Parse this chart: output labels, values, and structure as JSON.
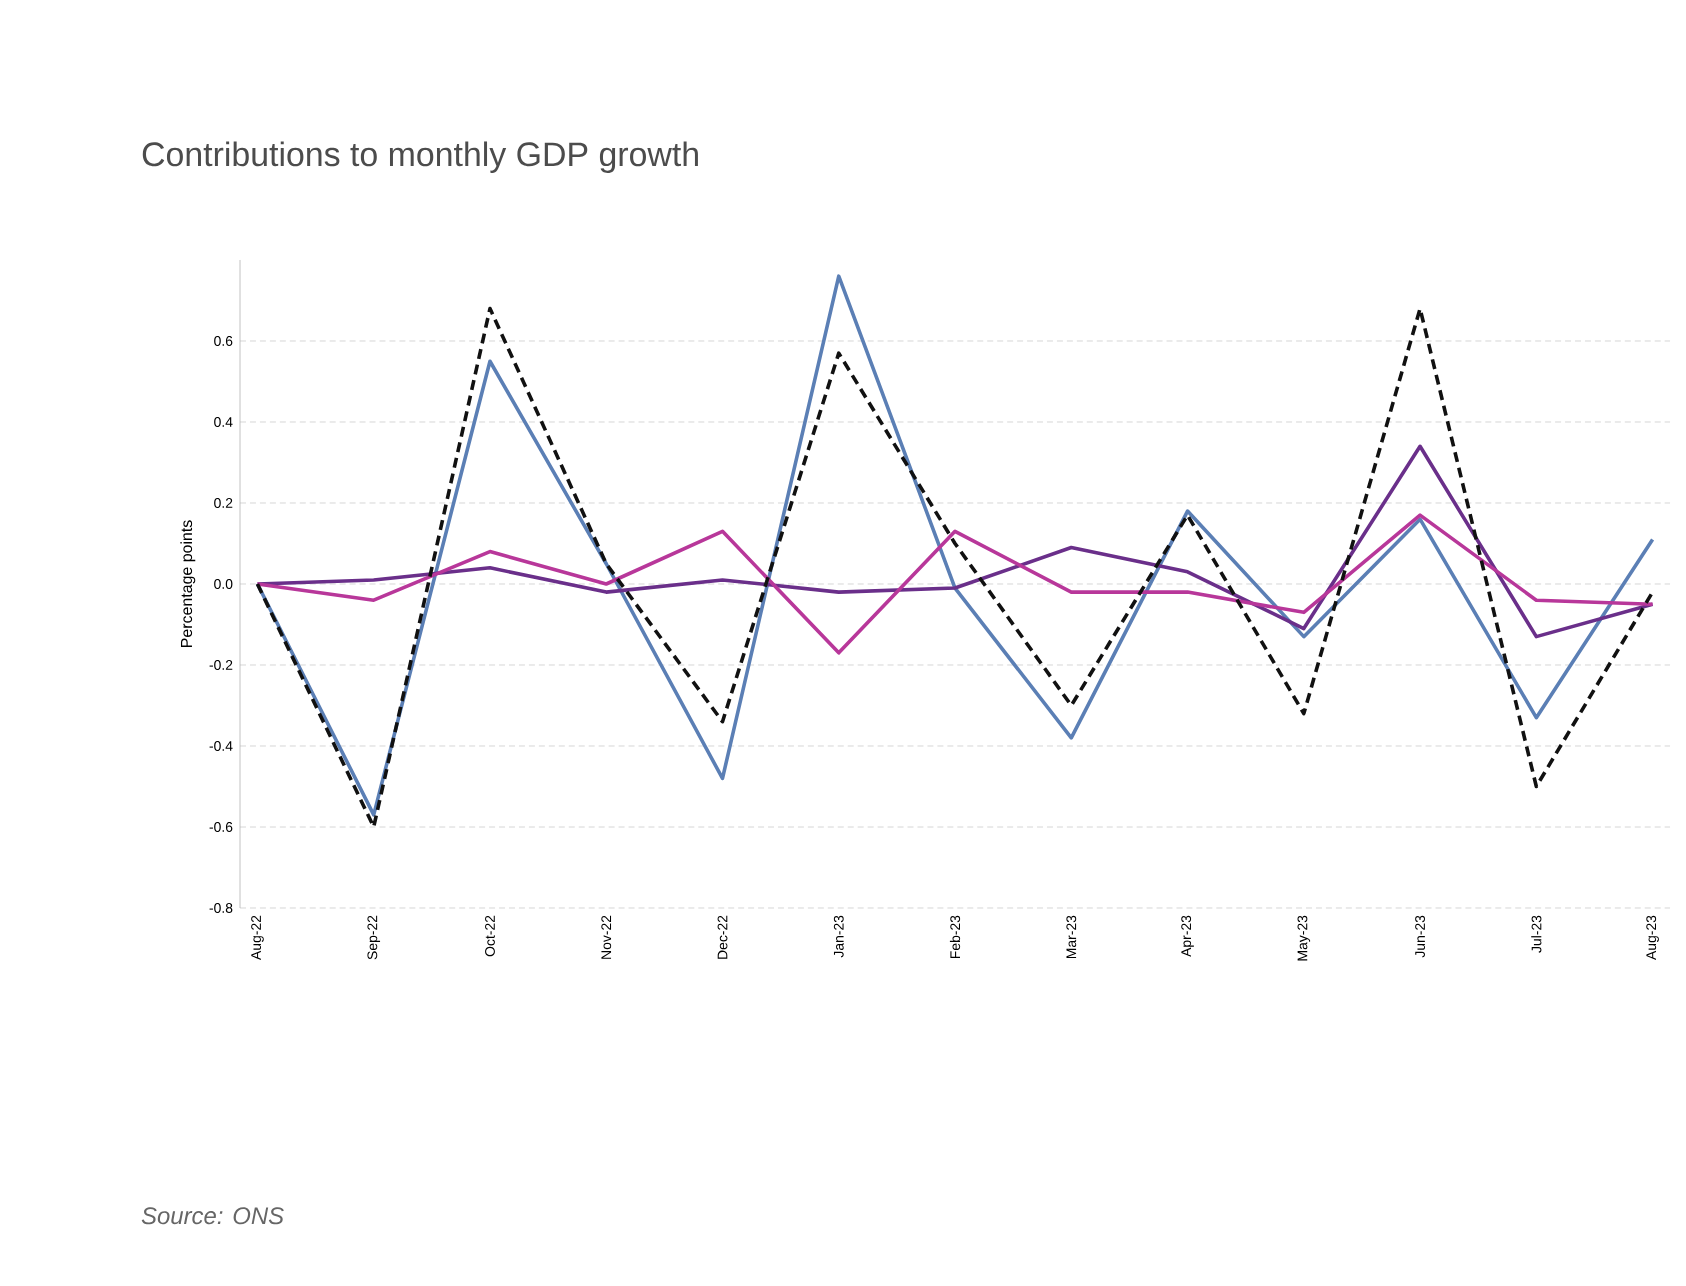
{
  "chart_data": {
    "type": "line",
    "title": "Contributions to monthly GDP growth",
    "ylabel": "Percentage points",
    "annotations": [
      "Source: ONS"
    ],
    "categories": [
      "Aug-22",
      "Sep-22",
      "Oct-22",
      "Nov-22",
      "Dec-22",
      "Jan-23",
      "Feb-23",
      "Mar-23",
      "Apr-23",
      "May-23",
      "Jun-23",
      "Jul-23",
      "Aug-23"
    ],
    "ylim": [
      -0.8,
      0.8
    ],
    "yticks": [
      -0.8,
      -0.6,
      -0.4,
      -0.2,
      {
        "value": 0,
        "label": "0.0"
      },
      0.2,
      0.4,
      0.6
    ],
    "grid": "y",
    "series": [
      {
        "color": "#5b7fb5",
        "line_style": "solid",
        "values": [
          0,
          -0.57,
          0.55,
          0.05,
          -0.48,
          0.76,
          -0.01,
          -0.38,
          0.18,
          -0.13,
          0.16,
          -0.33,
          0.11
        ]
      },
      {
        "color": "#6a2f8a",
        "line_style": "solid",
        "values": [
          0,
          0.01,
          0.04,
          -0.02,
          0.01,
          -0.02,
          -0.01,
          0.09,
          0.03,
          -0.11,
          0.34,
          -0.13,
          -0.05
        ]
      },
      {
        "color": "#b8379a",
        "line_style": "solid",
        "values": [
          0,
          -0.04,
          0.08,
          0.0,
          0.13,
          -0.17,
          0.13,
          -0.02,
          -0.02,
          -0.07,
          0.17,
          -0.04,
          -0.05
        ]
      },
      {
        "color": "#111111",
        "line_style": "dashed",
        "values": [
          0,
          -0.6,
          0.68,
          0.05,
          -0.34,
          0.57,
          0.1,
          -0.3,
          0.17,
          -0.32,
          0.68,
          -0.5,
          -0.02
        ]
      }
    ]
  }
}
